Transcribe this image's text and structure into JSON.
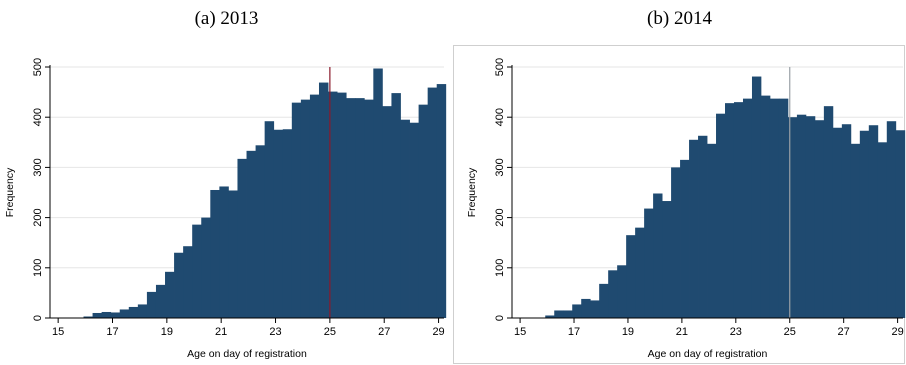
{
  "chart_data": [
    {
      "type": "bar",
      "subtitle": "(a) 2013",
      "xlabel": "Age on day of registration",
      "ylabel": "Frequency",
      "xlim": [
        14.7,
        29.2
      ],
      "ylim": [
        0,
        500
      ],
      "x_ticks": [
        15,
        17,
        19,
        21,
        23,
        25,
        27,
        29
      ],
      "y_ticks": [
        0,
        100,
        200,
        300,
        400,
        500
      ],
      "grid": true,
      "bar_color": "#1f4a70",
      "cutoff_line": {
        "x": 25,
        "color": "#8b1a2b"
      },
      "bin_start": 15.6,
      "bin_width": 0.3333,
      "values": [
        0,
        3,
        10,
        12,
        11,
        17,
        22,
        27,
        52,
        66,
        92,
        130,
        143,
        186,
        200,
        255,
        262,
        254,
        317,
        333,
        344,
        392,
        375,
        376,
        429,
        435,
        445,
        469,
        451,
        449,
        438,
        438,
        435,
        497,
        422,
        448,
        395,
        389,
        425,
        459,
        466
      ]
    },
    {
      "type": "bar",
      "subtitle": "(b) 2014",
      "xlabel": "Age on day of registration",
      "ylabel": "Frequency",
      "xlim": [
        14.7,
        29.2
      ],
      "ylim": [
        0,
        500
      ],
      "x_ticks": [
        15,
        17,
        19,
        21,
        23,
        25,
        27,
        29
      ],
      "y_ticks": [
        0,
        100,
        200,
        300,
        400,
        500
      ],
      "grid": true,
      "bar_color": "#1f4a70",
      "cutoff_line": {
        "x": 25,
        "color": "#9aa0a6"
      },
      "bin_start": 15.6,
      "bin_width": 0.3333,
      "values": [
        0,
        5,
        15,
        15,
        27,
        38,
        35,
        68,
        95,
        105,
        165,
        180,
        218,
        248,
        233,
        300,
        315,
        355,
        363,
        347,
        407,
        428,
        430,
        437,
        481,
        443,
        437,
        437,
        400,
        405,
        402,
        394,
        422,
        379,
        386,
        347,
        373,
        384,
        350,
        392,
        374
      ]
    }
  ]
}
